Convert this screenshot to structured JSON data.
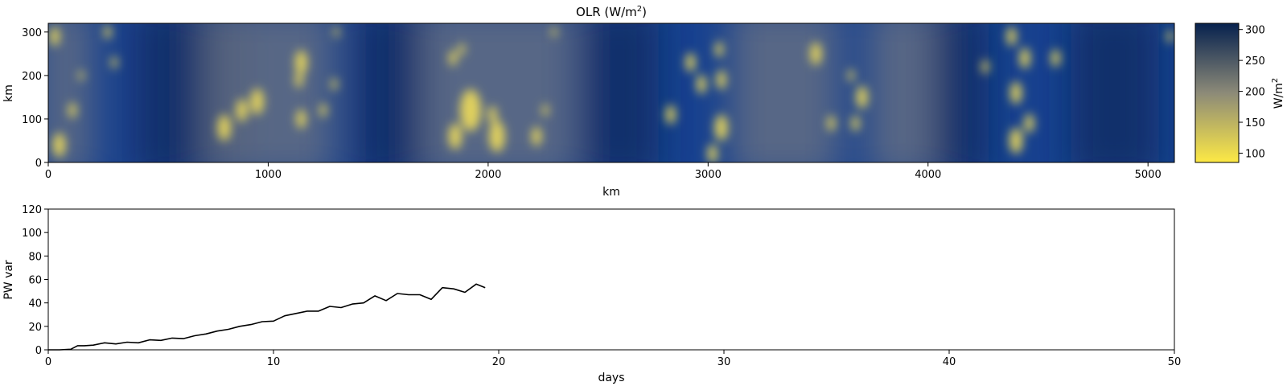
{
  "chart_data": [
    {
      "type": "heatmap",
      "title": "OLR (W/m",
      "title_superscript": "2",
      "title_suffix": ")",
      "xlabel": "km",
      "ylabel": "km",
      "xlim": [
        0,
        5120
      ],
      "ylim": [
        0,
        320
      ],
      "xticks": [
        0,
        1000,
        2000,
        3000,
        4000,
        5000
      ],
      "yticks": [
        0,
        100,
        200,
        300
      ],
      "colorbar": {
        "label": "W/m",
        "label_superscript": "2",
        "range": [
          85,
          310
        ],
        "ticks": [
          100,
          150,
          200,
          250,
          300
        ],
        "colors": [
          "#fde945",
          "#8c8a78",
          "#06214e"
        ]
      },
      "background_colors": {
        "clear_dark": "#0b2a63",
        "clear_mid": "#17418f",
        "cloudy_gray": "#6e7483",
        "convective_yellow": "#ecd95a"
      },
      "cells": [
        {
          "x": 30,
          "y": 290,
          "r": 22
        },
        {
          "x": 50,
          "y": 40,
          "r": 28
        },
        {
          "x": 110,
          "y": 120,
          "r": 18
        },
        {
          "x": 150,
          "y": 200,
          "r": 12
        },
        {
          "x": 270,
          "y": 300,
          "r": 16
        },
        {
          "x": 300,
          "y": 230,
          "r": 14
        },
        {
          "x": 800,
          "y": 80,
          "r": 30
        },
        {
          "x": 880,
          "y": 120,
          "r": 26
        },
        {
          "x": 950,
          "y": 140,
          "r": 30
        },
        {
          "x": 1150,
          "y": 230,
          "r": 28
        },
        {
          "x": 1140,
          "y": 190,
          "r": 18
        },
        {
          "x": 1150,
          "y": 100,
          "r": 22
        },
        {
          "x": 1250,
          "y": 120,
          "r": 16
        },
        {
          "x": 1300,
          "y": 180,
          "r": 14
        },
        {
          "x": 1310,
          "y": 300,
          "r": 12
        },
        {
          "x": 1840,
          "y": 240,
          "r": 18
        },
        {
          "x": 1880,
          "y": 260,
          "r": 14
        },
        {
          "x": 1920,
          "y": 120,
          "r": 48
        },
        {
          "x": 2020,
          "y": 110,
          "r": 20
        },
        {
          "x": 2040,
          "y": 60,
          "r": 36
        },
        {
          "x": 1850,
          "y": 60,
          "r": 30
        },
        {
          "x": 2220,
          "y": 60,
          "r": 22
        },
        {
          "x": 2260,
          "y": 120,
          "r": 14
        },
        {
          "x": 2300,
          "y": 300,
          "r": 12
        },
        {
          "x": 2830,
          "y": 110,
          "r": 22
        },
        {
          "x": 2920,
          "y": 230,
          "r": 22
        },
        {
          "x": 2970,
          "y": 180,
          "r": 22
        },
        {
          "x": 3050,
          "y": 260,
          "r": 18
        },
        {
          "x": 3060,
          "y": 80,
          "r": 30
        },
        {
          "x": 3060,
          "y": 190,
          "r": 22
        },
        {
          "x": 3020,
          "y": 20,
          "r": 22
        },
        {
          "x": 3490,
          "y": 250,
          "r": 26
        },
        {
          "x": 3560,
          "y": 90,
          "r": 18
        },
        {
          "x": 3700,
          "y": 150,
          "r": 26
        },
        {
          "x": 3670,
          "y": 90,
          "r": 18
        },
        {
          "x": 3650,
          "y": 200,
          "r": 14
        },
        {
          "x": 4380,
          "y": 290,
          "r": 22
        },
        {
          "x": 4440,
          "y": 240,
          "r": 24
        },
        {
          "x": 4580,
          "y": 240,
          "r": 20
        },
        {
          "x": 4400,
          "y": 160,
          "r": 26
        },
        {
          "x": 4460,
          "y": 90,
          "r": 22
        },
        {
          "x": 4400,
          "y": 50,
          "r": 30
        },
        {
          "x": 4260,
          "y": 220,
          "r": 16
        },
        {
          "x": 5100,
          "y": 290,
          "r": 14
        }
      ]
    },
    {
      "type": "line",
      "xlabel": "days",
      "ylabel": "PW var",
      "xlim": [
        0,
        50
      ],
      "ylim": [
        0,
        120
      ],
      "xticks": [
        0,
        10,
        20,
        30,
        40,
        50
      ],
      "yticks": [
        0,
        20,
        40,
        60,
        80,
        100,
        120
      ],
      "line_color": "#000000",
      "series": [
        {
          "x": [
            0,
            0.5,
            1.0,
            1.3,
            1.6,
            2.0,
            2.5,
            3.0,
            3.5,
            4.0,
            4.5,
            5.0,
            5.5,
            6.0,
            6.5,
            7.0,
            7.5,
            8.0,
            8.5,
            9.0,
            9.5,
            10.0,
            10.5,
            11.0,
            11.5,
            12.0,
            12.5,
            13.0,
            13.5,
            14.0,
            14.5,
            15.0,
            15.5,
            16.0,
            16.5,
            17.0,
            17.5,
            18.0,
            18.5,
            19.0,
            19.4
          ],
          "values": [
            0,
            0,
            0.5,
            3.5,
            3.5,
            4,
            6,
            5,
            6.5,
            6,
            8.5,
            8,
            10,
            9.5,
            12,
            13.5,
            16,
            17.5,
            20,
            21.5,
            24,
            24.5,
            29,
            31,
            33,
            33,
            37,
            36,
            39,
            40,
            46,
            42,
            48,
            47,
            47,
            43,
            53,
            52,
            49,
            56,
            53
          ]
        }
      ]
    }
  ]
}
